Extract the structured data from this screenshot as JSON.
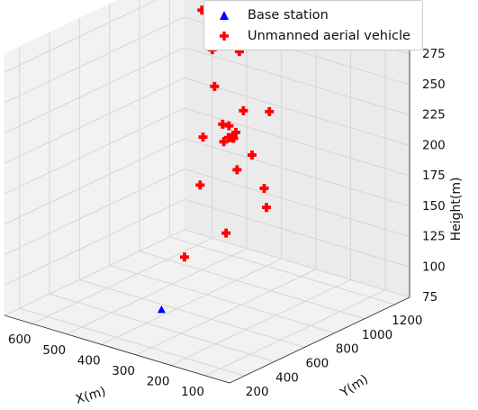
{
  "chart_data": {
    "type": "scatter3d",
    "xlabel": "X(m)",
    "ylabel": "Y(m)",
    "zlabel": "Height(m)",
    "x_ticks": [
      100,
      200,
      300,
      400,
      500,
      600
    ],
    "y_ticks": [
      200,
      400,
      600,
      800,
      1000,
      1200
    ],
    "z_ticks": [
      75,
      100,
      125,
      150,
      175,
      200,
      225,
      250,
      275
    ],
    "xlim": [
      30,
      680
    ],
    "ylim": [
      100,
      1300
    ],
    "zlim": [
      75,
      290
    ],
    "grid": true,
    "legend_position": "top-right",
    "series": [
      {
        "name": "Base station",
        "marker": "triangle",
        "color": "#0000ff",
        "points": [
          {
            "x": 400,
            "y": 500,
            "z": 80
          }
        ]
      },
      {
        "name": "Unmanned aerial vehicle",
        "marker": "plus",
        "color": "#ff0000",
        "points": [
          {
            "x": 110,
            "y": 550,
            "z": 265
          },
          {
            "x": 60,
            "y": 400,
            "z": 215
          },
          {
            "x": 75,
            "y": 450,
            "z": 195
          },
          {
            "x": 160,
            "y": 550,
            "z": 225
          },
          {
            "x": 250,
            "y": 700,
            "z": 245
          },
          {
            "x": 250,
            "y": 650,
            "z": 230
          },
          {
            "x": 300,
            "y": 750,
            "z": 215
          },
          {
            "x": 330,
            "y": 800,
            "z": 210
          },
          {
            "x": 350,
            "y": 800,
            "z": 205
          },
          {
            "x": 290,
            "y": 750,
            "z": 190
          },
          {
            "x": 300,
            "y": 700,
            "z": 140
          },
          {
            "x": 380,
            "y": 900,
            "z": 200
          },
          {
            "x": 400,
            "y": 950,
            "z": 205
          },
          {
            "x": 440,
            "y": 1000,
            "z": 200
          },
          {
            "x": 420,
            "y": 700,
            "z": 110
          },
          {
            "x": 450,
            "y": 1200,
            "z": 285
          },
          {
            "x": 500,
            "y": 1250,
            "z": 240
          },
          {
            "x": 550,
            "y": 1200,
            "z": 210
          },
          {
            "x": 540,
            "y": 1100,
            "z": 175
          },
          {
            "x": 570,
            "y": 1150,
            "z": 130
          },
          {
            "x": 600,
            "y": 1300,
            "z": 230
          },
          {
            "x": 630,
            "y": 1300,
            "z": 260
          }
        ]
      }
    ]
  }
}
